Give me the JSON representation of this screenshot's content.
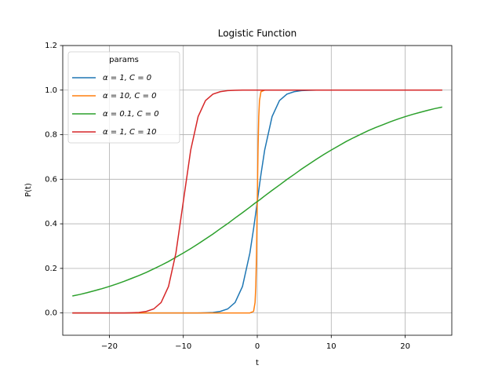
{
  "chart_data": {
    "type": "line",
    "title": "Logistic Function",
    "x_label": "t",
    "y_label": "P(t)",
    "x": [
      -25,
      -24,
      -23,
      -22,
      -21,
      -20,
      -19,
      -18,
      -17,
      -16,
      -15,
      -14,
      -13,
      -12,
      -11,
      -10,
      -9,
      -8,
      -7,
      -6,
      -5,
      -4,
      -3,
      -2,
      -1,
      -0.5,
      -0.3,
      -0.2,
      -0.1,
      0,
      0.1,
      0.2,
      0.3,
      0.5,
      1,
      2,
      3,
      4,
      5,
      6,
      7,
      8,
      9,
      10,
      11,
      12,
      13,
      14,
      15,
      16,
      17,
      18,
      19,
      20,
      21,
      22,
      23,
      24,
      25
    ],
    "series": [
      {
        "name": "α = 1, C = 0",
        "color": "#1f77b4",
        "values": [
          0,
          0,
          0,
          0,
          0,
          0,
          0,
          0,
          0,
          0,
          0,
          0,
          0,
          0,
          0,
          0,
          0,
          0,
          0.001,
          0.002,
          0.007,
          0.018,
          0.047,
          0.119,
          0.269,
          0.378,
          0.426,
          0.45,
          0.475,
          0.5,
          0.525,
          0.55,
          0.574,
          0.622,
          0.731,
          0.881,
          0.953,
          0.982,
          0.993,
          0.998,
          0.999,
          1,
          1,
          1,
          1,
          1,
          1,
          1,
          1,
          1,
          1,
          1,
          1,
          1,
          1,
          1,
          1,
          1,
          1
        ]
      },
      {
        "name": "α = 10, C = 0",
        "color": "#ff7f0e",
        "values": [
          0,
          0,
          0,
          0,
          0,
          0,
          0,
          0,
          0,
          0,
          0,
          0,
          0,
          0,
          0,
          0,
          0,
          0,
          0,
          0,
          0,
          0,
          0,
          0,
          0,
          0.007,
          0.047,
          0.119,
          0.269,
          0.5,
          0.731,
          0.881,
          0.953,
          0.993,
          1,
          1,
          1,
          1,
          1,
          1,
          1,
          1,
          1,
          1,
          1,
          1,
          1,
          1,
          1,
          1,
          1,
          1,
          1,
          1,
          1,
          1,
          1,
          1,
          1
        ]
      },
      {
        "name": "α = 0.1, C = 0",
        "color": "#2ca02c",
        "values": [
          0.076,
          0.083,
          0.091,
          0.1,
          0.109,
          0.119,
          0.13,
          0.142,
          0.155,
          0.168,
          0.182,
          0.198,
          0.214,
          0.231,
          0.25,
          0.269,
          0.289,
          0.31,
          0.332,
          0.354,
          0.378,
          0.401,
          0.426,
          0.45,
          0.475,
          0.488,
          0.493,
          0.495,
          0.498,
          0.5,
          0.502,
          0.505,
          0.507,
          0.512,
          0.525,
          0.55,
          0.574,
          0.599,
          0.622,
          0.646,
          0.668,
          0.69,
          0.711,
          0.731,
          0.75,
          0.769,
          0.786,
          0.802,
          0.818,
          0.832,
          0.845,
          0.858,
          0.87,
          0.881,
          0.891,
          0.9,
          0.909,
          0.917,
          0.924
        ]
      },
      {
        "name": "α = 1, C = 10",
        "color": "#d62728",
        "values": [
          0,
          0,
          0,
          0,
          0,
          0,
          0,
          0,
          0.001,
          0.002,
          0.007,
          0.018,
          0.047,
          0.119,
          0.269,
          0.5,
          0.731,
          0.881,
          0.953,
          0.982,
          0.993,
          0.998,
          0.999,
          1,
          1,
          1,
          1,
          1,
          1,
          1,
          1,
          1,
          1,
          1,
          1,
          1,
          1,
          1,
          1,
          1,
          1,
          1,
          1,
          1,
          1,
          1,
          1,
          1,
          1,
          1,
          1,
          1,
          1,
          1,
          1,
          1,
          1,
          1,
          1
        ]
      }
    ],
    "xlim": [
      -26.3,
      26.3
    ],
    "ylim": [
      -0.1,
      1.2
    ],
    "xticks": [
      {
        "value": -20,
        "label": "−20"
      },
      {
        "value": -10,
        "label": "−10"
      },
      0,
      10,
      20
    ],
    "yticks": [
      {
        "value": 0,
        "label": "0.0"
      },
      0.2,
      0.4,
      0.6,
      0.8,
      {
        "value": 1,
        "label": "1.0"
      },
      1.2
    ],
    "grid": true,
    "legend_title": "params",
    "legend_position": "upper-left"
  }
}
